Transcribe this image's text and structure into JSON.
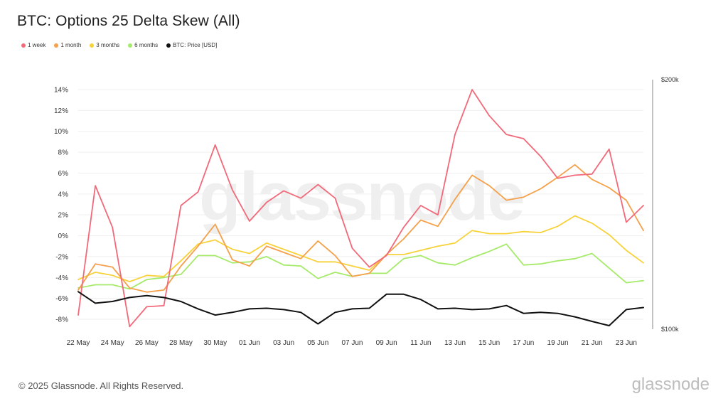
{
  "header": {
    "title": "BTC: Options 25 Delta Skew (All)"
  },
  "footer": {
    "copyright": "© 2025 Glassnode. All Rights Reserved.",
    "logo": "glassnode"
  },
  "watermark": "glassnode",
  "legend": [
    {
      "label": "1 week",
      "color": "#f2697a"
    },
    {
      "label": "1 month",
      "color": "#f5a04a"
    },
    {
      "label": "3 months",
      "color": "#f7d23a"
    },
    {
      "label": "6 months",
      "color": "#a6ea6a"
    },
    {
      "label": "BTC: Price [USD]",
      "color": "#111111"
    }
  ],
  "chart_data": {
    "type": "line",
    "title": "BTC: Options 25 Delta Skew (All)",
    "x": [
      "22 May",
      "23 May",
      "24 May",
      "25 May",
      "26 May",
      "27 May",
      "28 May",
      "29 May",
      "30 May",
      "31 May",
      "01 Jun",
      "02 Jun",
      "03 Jun",
      "04 Jun",
      "05 Jun",
      "06 Jun",
      "07 Jun",
      "08 Jun",
      "09 Jun",
      "10 Jun",
      "11 Jun",
      "12 Jun",
      "13 Jun",
      "14 Jun",
      "15 Jun",
      "16 Jun",
      "17 Jun",
      "18 Jun",
      "19 Jun",
      "20 Jun",
      "21 Jun",
      "22 Jun",
      "23 Jun",
      "24 Jun"
    ],
    "x_tick_labels": [
      "22 May",
      "24 May",
      "26 May",
      "28 May",
      "30 May",
      "01 Jun",
      "03 Jun",
      "05 Jun",
      "07 Jun",
      "09 Jun",
      "11 Jun",
      "13 Jun",
      "15 Jun",
      "17 Jun",
      "19 Jun",
      "21 Jun",
      "23 Jun"
    ],
    "y_left": {
      "ticks": [
        "14%",
        "12%",
        "10%",
        "8%",
        "6%",
        "4%",
        "2%",
        "0%",
        "-2%",
        "-4%",
        "-6%",
        "-8%"
      ],
      "range": [
        -8.5,
        14.5
      ],
      "unit": "%"
    },
    "y_right": {
      "ticks": [
        "$200k",
        "$100k"
      ],
      "range": [
        100000,
        200000
      ],
      "scale": "log"
    },
    "series": [
      {
        "name": "1 week",
        "color": "#f2697a",
        "axis": "left",
        "values": [
          -7.6,
          4.8,
          0.8,
          -8.7,
          -6.8,
          -6.7,
          2.9,
          4.2,
          8.7,
          4.4,
          1.4,
          3.2,
          4.3,
          3.6,
          4.9,
          3.6,
          -1.2,
          -3.0,
          -1.9,
          0.8,
          2.9,
          2.0,
          9.7,
          14.0,
          11.5,
          9.7,
          9.3,
          7.6,
          5.5,
          5.8,
          5.9,
          8.3,
          1.3,
          2.9
        ]
      },
      {
        "name": "1 month",
        "color": "#f5a04a",
        "axis": "left",
        "values": [
          -5.2,
          -2.7,
          -3.0,
          -5.0,
          -5.4,
          -5.2,
          -2.9,
          -1.0,
          1.1,
          -2.3,
          -2.9,
          -1.0,
          -1.6,
          -2.2,
          -0.5,
          -1.9,
          -3.9,
          -3.6,
          -1.8,
          -0.3,
          1.5,
          0.9,
          3.5,
          5.8,
          4.8,
          3.4,
          3.7,
          4.5,
          5.6,
          6.8,
          5.4,
          4.6,
          3.4,
          0.5
        ]
      },
      {
        "name": "3 months",
        "color": "#f7d23a",
        "axis": "left",
        "values": [
          -4.2,
          -3.5,
          -3.8,
          -4.4,
          -3.8,
          -3.9,
          -2.4,
          -0.8,
          -0.4,
          -1.3,
          -1.7,
          -0.7,
          -1.3,
          -1.9,
          -2.5,
          -2.5,
          -2.9,
          -3.3,
          -1.8,
          -1.8,
          -1.4,
          -1.0,
          -0.7,
          0.5,
          0.2,
          0.2,
          0.4,
          0.3,
          0.9,
          1.9,
          1.2,
          0.1,
          -1.4,
          -2.6
        ]
      },
      {
        "name": "6 months",
        "color": "#a6ea6a",
        "axis": "left",
        "values": [
          -5.0,
          -4.7,
          -4.7,
          -5.1,
          -4.2,
          -4.0,
          -3.7,
          -1.9,
          -1.9,
          -2.6,
          -2.5,
          -2.0,
          -2.8,
          -2.9,
          -4.1,
          -3.5,
          -3.9,
          -3.6,
          -3.6,
          -2.2,
          -1.9,
          -2.6,
          -2.8,
          -2.1,
          -1.5,
          -0.8,
          -2.8,
          -2.7,
          -2.4,
          -2.2,
          -1.7,
          -3.1,
          -4.5,
          -4.3
        ]
      },
      {
        "name": "BTC: Price [USD]",
        "color": "#111111",
        "axis": "right",
        "values": [
          111000,
          107500,
          108000,
          109200,
          109800,
          109200,
          108000,
          105800,
          104000,
          104800,
          105800,
          106000,
          105600,
          104800,
          101500,
          104800,
          105800,
          106000,
          110200,
          110200,
          108600,
          105800,
          106000,
          105600,
          105800,
          106800,
          104500,
          104800,
          104500,
          103500,
          102200,
          101000,
          105600,
          106200
        ]
      }
    ]
  }
}
